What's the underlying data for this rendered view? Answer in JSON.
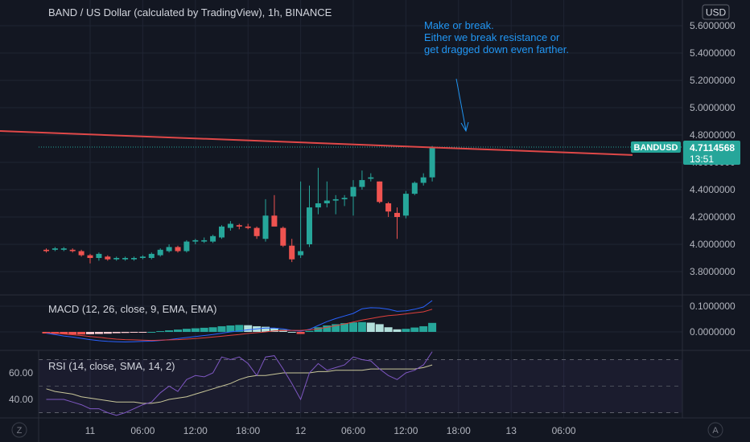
{
  "header": {
    "title": "BAND / US Dollar (calculated by TradingView), 1h, BINANCE",
    "currency_button": "USD"
  },
  "annotation": {
    "lines": [
      "Make or break.",
      "Either we break resistance or",
      "get dragged down even farther."
    ]
  },
  "price_badge": {
    "symbol": "BANDUSD",
    "price": "4.7114568",
    "countdown": "13:51"
  },
  "macd_label": "MACD (12, 26, close, 9, EMA, EMA)",
  "rsi_label": "RSI (14, close, SMA, 14, 2)",
  "footer": {
    "left_button": "Z",
    "right_button": "A"
  },
  "colors": {
    "background": "#131722",
    "grid": "#1f2433",
    "up": "#26a69a",
    "down": "#ef5350",
    "resistance": "#e04848",
    "annotation": "#2196f3",
    "macd_line": "#2962ff",
    "signal_line": "#e0403c",
    "rsi_line": "#7e57c2",
    "rsi_ma": "#c9c79a",
    "hist_up_strong": "#26a69a",
    "hist_up_weak": "#b2dfdb",
    "hist_down_strong": "#ef5350",
    "hist_down_weak": "#ffcdd2",
    "axis_text": "#b2b5be"
  },
  "chart_data": [
    {
      "type": "candlestick",
      "title": "BAND / US Dollar (calculated by TradingView), 1h, BINANCE",
      "y_ticks": [
        "5.6000000",
        "5.4000000",
        "5.2000000",
        "5.0000000",
        "4.8000000",
        "4.6000000",
        "4.4000000",
        "4.2000000",
        "4.0000000",
        "3.8000000"
      ],
      "y_tick_values": [
        5.6,
        5.4,
        5.2,
        5.0,
        4.8,
        4.6,
        4.4,
        4.2,
        4.0,
        3.8
      ],
      "x_ticks": [
        "11",
        "06:00",
        "12:00",
        "18:00",
        "12",
        "06:00",
        "12:00",
        "18:00",
        "13",
        "06:00"
      ],
      "x_tick_bars": [
        5,
        11,
        17,
        23,
        29,
        35,
        41,
        47,
        53,
        59
      ],
      "ylim": [
        3.7,
        5.7
      ],
      "last_price": 4.7114568,
      "resistance_line": {
        "start_bar": -5.5,
        "start_value": 4.83,
        "end_bar": 56,
        "end_value": 4.68
      },
      "candles": [
        {
          "o": 3.96,
          "h": 3.97,
          "l": 3.94,
          "c": 3.95
        },
        {
          "o": 3.96,
          "h": 3.98,
          "l": 3.95,
          "c": 3.97
        },
        {
          "o": 3.96,
          "h": 3.98,
          "l": 3.95,
          "c": 3.97
        },
        {
          "o": 3.96,
          "h": 3.97,
          "l": 3.94,
          "c": 3.95
        },
        {
          "o": 3.95,
          "h": 3.96,
          "l": 3.91,
          "c": 3.92
        },
        {
          "o": 3.92,
          "h": 3.93,
          "l": 3.86,
          "c": 3.9
        },
        {
          "o": 3.9,
          "h": 3.94,
          "l": 3.88,
          "c": 3.93
        },
        {
          "o": 3.91,
          "h": 3.92,
          "l": 3.88,
          "c": 3.89
        },
        {
          "o": 3.89,
          "h": 3.91,
          "l": 3.88,
          "c": 3.9
        },
        {
          "o": 3.89,
          "h": 3.91,
          "l": 3.88,
          "c": 3.9
        },
        {
          "o": 3.89,
          "h": 3.91,
          "l": 3.88,
          "c": 3.9
        },
        {
          "o": 3.9,
          "h": 3.92,
          "l": 3.89,
          "c": 3.91
        },
        {
          "o": 3.9,
          "h": 3.94,
          "l": 3.89,
          "c": 3.93
        },
        {
          "o": 3.92,
          "h": 3.97,
          "l": 3.91,
          "c": 3.96
        },
        {
          "o": 3.95,
          "h": 4.0,
          "l": 3.94,
          "c": 3.98
        },
        {
          "o": 3.98,
          "h": 3.99,
          "l": 3.94,
          "c": 3.95
        },
        {
          "o": 3.95,
          "h": 4.03,
          "l": 3.94,
          "c": 4.02
        },
        {
          "o": 4.02,
          "h": 4.04,
          "l": 4.0,
          "c": 4.03
        },
        {
          "o": 4.02,
          "h": 4.05,
          "l": 4.01,
          "c": 4.03
        },
        {
          "o": 4.02,
          "h": 4.07,
          "l": 4.01,
          "c": 4.06
        },
        {
          "o": 4.05,
          "h": 4.14,
          "l": 4.04,
          "c": 4.13
        },
        {
          "o": 4.12,
          "h": 4.17,
          "l": 4.1,
          "c": 4.15
        },
        {
          "o": 4.14,
          "h": 4.15,
          "l": 4.11,
          "c": 4.13
        },
        {
          "o": 4.13,
          "h": 4.15,
          "l": 4.11,
          "c": 4.12
        },
        {
          "o": 4.12,
          "h": 4.13,
          "l": 4.04,
          "c": 4.06
        },
        {
          "o": 4.04,
          "h": 4.33,
          "l": 4.02,
          "c": 4.21
        },
        {
          "o": 4.21,
          "h": 4.36,
          "l": 4.14,
          "c": 4.13
        },
        {
          "o": 4.12,
          "h": 4.13,
          "l": 3.98,
          "c": 3.99
        },
        {
          "o": 3.99,
          "h": 4.04,
          "l": 3.87,
          "c": 3.89
        },
        {
          "o": 3.92,
          "h": 4.46,
          "l": 3.9,
          "c": 3.95
        },
        {
          "o": 4.0,
          "h": 4.43,
          "l": 3.98,
          "c": 4.27
        },
        {
          "o": 4.27,
          "h": 4.56,
          "l": 4.22,
          "c": 4.3
        },
        {
          "o": 4.3,
          "h": 4.46,
          "l": 4.27,
          "c": 4.32
        },
        {
          "o": 4.32,
          "h": 4.36,
          "l": 4.22,
          "c": 4.33
        },
        {
          "o": 4.33,
          "h": 4.36,
          "l": 4.28,
          "c": 4.34
        },
        {
          "o": 4.35,
          "h": 4.47,
          "l": 4.21,
          "c": 4.42
        },
        {
          "o": 4.42,
          "h": 4.54,
          "l": 4.4,
          "c": 4.47
        },
        {
          "o": 4.48,
          "h": 4.52,
          "l": 4.46,
          "c": 4.49
        },
        {
          "o": 4.46,
          "h": 4.46,
          "l": 4.3,
          "c": 4.31
        },
        {
          "o": 4.3,
          "h": 4.31,
          "l": 4.2,
          "c": 4.24
        },
        {
          "o": 4.23,
          "h": 4.27,
          "l": 4.04,
          "c": 4.2
        },
        {
          "o": 4.21,
          "h": 4.39,
          "l": 4.19,
          "c": 4.37
        },
        {
          "o": 4.37,
          "h": 4.46,
          "l": 4.36,
          "c": 4.45
        },
        {
          "o": 4.45,
          "h": 4.52,
          "l": 4.43,
          "c": 4.49
        },
        {
          "o": 4.49,
          "h": 4.72,
          "l": 4.46,
          "c": 4.71
        }
      ]
    },
    {
      "type": "macd",
      "title": "MACD (12, 26, close, 9, EMA, EMA)",
      "y_ticks": [
        "0.1000000",
        "0.0000000"
      ],
      "y_tick_values": [
        0.1,
        0.0
      ],
      "ylim": [
        -0.045,
        0.135
      ],
      "histogram": [
        -0.006,
        -0.008,
        -0.008,
        -0.01,
        -0.01,
        -0.009,
        -0.008,
        -0.007,
        -0.005,
        -0.004,
        -0.003,
        -0.002,
        0.0,
        0.003,
        0.006,
        0.009,
        0.012,
        0.014,
        0.016,
        0.018,
        0.022,
        0.025,
        0.027,
        0.026,
        0.022,
        0.02,
        0.015,
        0.008,
        0.0,
        -0.008,
        0.004,
        0.018,
        0.025,
        0.03,
        0.034,
        0.037,
        0.038,
        0.036,
        0.03,
        0.018,
        0.01,
        0.012,
        0.017,
        0.022,
        0.035
      ],
      "macd_line": [
        -0.005,
        -0.01,
        -0.016,
        -0.02,
        -0.025,
        -0.03,
        -0.034,
        -0.037,
        -0.038,
        -0.039,
        -0.038,
        -0.037,
        -0.036,
        -0.033,
        -0.03,
        -0.026,
        -0.022,
        -0.018,
        -0.014,
        -0.01,
        -0.005,
        0.0,
        0.004,
        0.008,
        0.012,
        0.015,
        0.015,
        0.012,
        0.006,
        0.003,
        0.01,
        0.025,
        0.04,
        0.052,
        0.062,
        0.072,
        0.09,
        0.094,
        0.093,
        0.088,
        0.08,
        0.082,
        0.088,
        0.097,
        0.122
      ],
      "signal_line": [
        -0.003,
        -0.005,
        -0.008,
        -0.011,
        -0.014,
        -0.018,
        -0.021,
        -0.025,
        -0.028,
        -0.03,
        -0.031,
        -0.032,
        -0.033,
        -0.032,
        -0.031,
        -0.03,
        -0.028,
        -0.026,
        -0.023,
        -0.02,
        -0.017,
        -0.013,
        -0.01,
        -0.006,
        -0.003,
        0.0,
        0.004,
        0.005,
        0.006,
        0.006,
        0.008,
        0.012,
        0.018,
        0.024,
        0.031,
        0.038,
        0.046,
        0.052,
        0.058,
        0.063,
        0.066,
        0.07,
        0.074,
        0.078,
        0.088
      ]
    },
    {
      "type": "rsi",
      "title": "RSI (14, close, SMA, 14, 2)",
      "y_ticks": [
        "60.00",
        "40.00"
      ],
      "y_tick_values": [
        60,
        40
      ],
      "ylim": [
        20,
        80
      ],
      "band": [
        30,
        70
      ],
      "rsi": [
        40,
        40,
        40,
        38,
        36,
        33,
        33,
        30,
        28,
        30,
        33,
        36,
        38,
        45,
        50,
        46,
        55,
        58,
        57,
        60,
        72,
        70,
        72,
        67,
        58,
        72,
        73,
        63,
        52,
        40,
        60,
        67,
        62,
        64,
        66,
        72,
        70,
        69,
        63,
        58,
        55,
        60,
        62,
        66,
        76
      ],
      "rsi_ma": [
        48,
        46,
        45,
        44,
        42,
        41,
        40,
        39,
        38,
        38,
        38,
        37,
        37,
        38,
        40,
        41,
        42,
        44,
        46,
        48,
        50,
        52,
        55,
        57,
        58,
        58,
        59,
        60,
        60,
        60,
        60,
        61,
        61,
        62,
        62,
        62,
        62,
        63,
        63,
        63,
        63,
        63,
        63,
        64,
        66
      ]
    }
  ]
}
